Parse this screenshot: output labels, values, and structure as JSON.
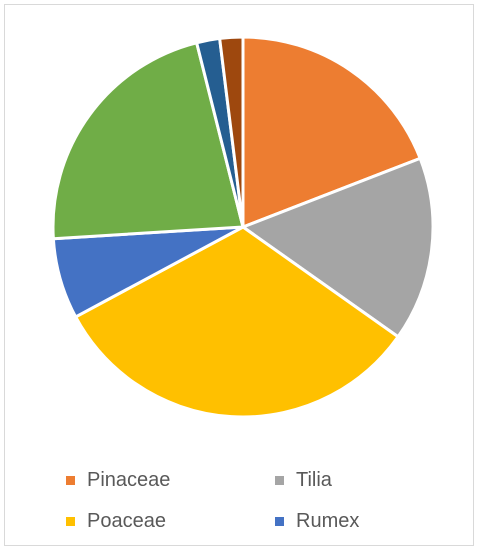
{
  "chart_data": {
    "type": "pie",
    "start_angle_deg": 0,
    "direction": "clockwise",
    "slices": [
      {
        "name": "Pinaceae",
        "value": 19.5,
        "color": "#ED7D31"
      },
      {
        "name": "Tilia",
        "value": 16.0,
        "color": "#A5A5A5"
      },
      {
        "name": "Poaceae",
        "value": 33.0,
        "color": "#FFC000"
      },
      {
        "name": "Rumex",
        "value": 7.0,
        "color": "#4472C4"
      },
      {
        "name": "",
        "value": 22.5,
        "color": "#70AD47"
      },
      {
        "name": "",
        "value": 2.0,
        "color": "#255E91"
      },
      {
        "name": "",
        "value": 2.0,
        "color": "#9E480E"
      }
    ],
    "legend": [
      {
        "label": "Pinaceae",
        "color": "#ED7D31"
      },
      {
        "label": "Tilia",
        "color": "#A5A5A5"
      },
      {
        "label": "Poaceae",
        "color": "#FFC000"
      },
      {
        "label": "Rumex",
        "color": "#4472C4"
      }
    ],
    "legend_position": "bottom"
  }
}
